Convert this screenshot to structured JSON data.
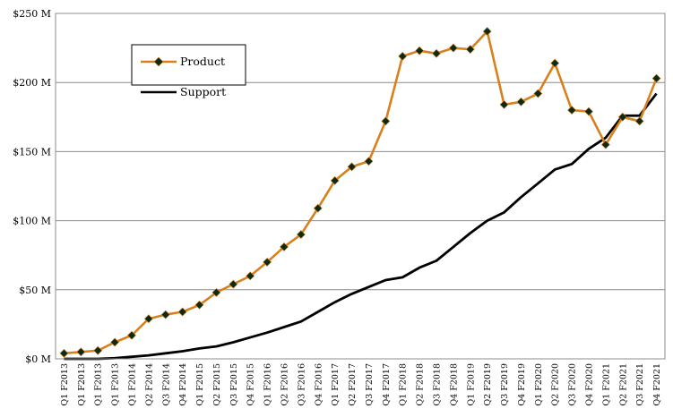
{
  "chart_data": {
    "type": "line",
    "title": "",
    "xlabel": "",
    "ylabel": "",
    "ylim": [
      0,
      250
    ],
    "yticks": [
      {
        "value": 0,
        "label": "$0 M"
      },
      {
        "value": 50,
        "label": "$50 M"
      },
      {
        "value": 100,
        "label": "$100 M"
      },
      {
        "value": 150,
        "label": "$150 M"
      },
      {
        "value": 200,
        "label": "$200 M"
      },
      {
        "value": 250,
        "label": "$250 M"
      }
    ],
    "grid": "horizontal",
    "legend_position": "top-left",
    "categories": [
      "Q1 F2013",
      "Q1 F2013",
      "Q1 F2013",
      "Q1 F2013",
      "Q1 F2014",
      "Q2 F2014",
      "Q3 F2014",
      "Q4 F2014",
      "Q1 F2015",
      "Q2 F2015",
      "Q3 F2015",
      "Q4 F2015",
      "Q1 F2016",
      "Q2 F2016",
      "Q3 F2016",
      "Q4 F2016",
      "Q1 F2017",
      "Q2 F2017",
      "Q3 F2017",
      "Q4 F2017",
      "Q1 F2018",
      "Q2 F2018",
      "Q3 F2018",
      "Q4 F2018",
      "Q1 F2019",
      "Q2 F2019",
      "Q3 F2019",
      "Q4 F2019",
      "Q1 F2020",
      "Q2 F2020",
      "Q3 F2020",
      "Q4 F2020",
      "Q1 F2021",
      "Q2 F2021",
      "Q3 F2021",
      "Q4 F2021"
    ],
    "series": [
      {
        "name": "Product",
        "color": "#D9801E",
        "marker_color": "#0d2a14",
        "values": [
          4,
          5,
          6,
          12,
          17,
          29,
          32,
          34,
          39,
          48,
          54,
          60,
          70,
          81,
          90,
          109,
          129,
          139,
          143,
          172,
          219,
          223,
          221,
          225,
          224,
          237,
          184,
          186,
          192,
          214,
          180,
          179,
          155,
          175,
          172,
          203
        ]
      },
      {
        "name": "Support",
        "color": "#000000",
        "values": [
          0,
          0,
          0,
          0.5,
          1.5,
          2.5,
          4,
          5.5,
          7.5,
          9,
          12,
          15.5,
          19,
          23,
          27,
          34,
          41,
          47,
          52,
          57,
          59,
          66,
          71,
          81,
          91,
          100,
          106,
          117,
          127,
          137,
          141,
          152,
          160,
          176,
          176,
          192
        ]
      }
    ]
  }
}
